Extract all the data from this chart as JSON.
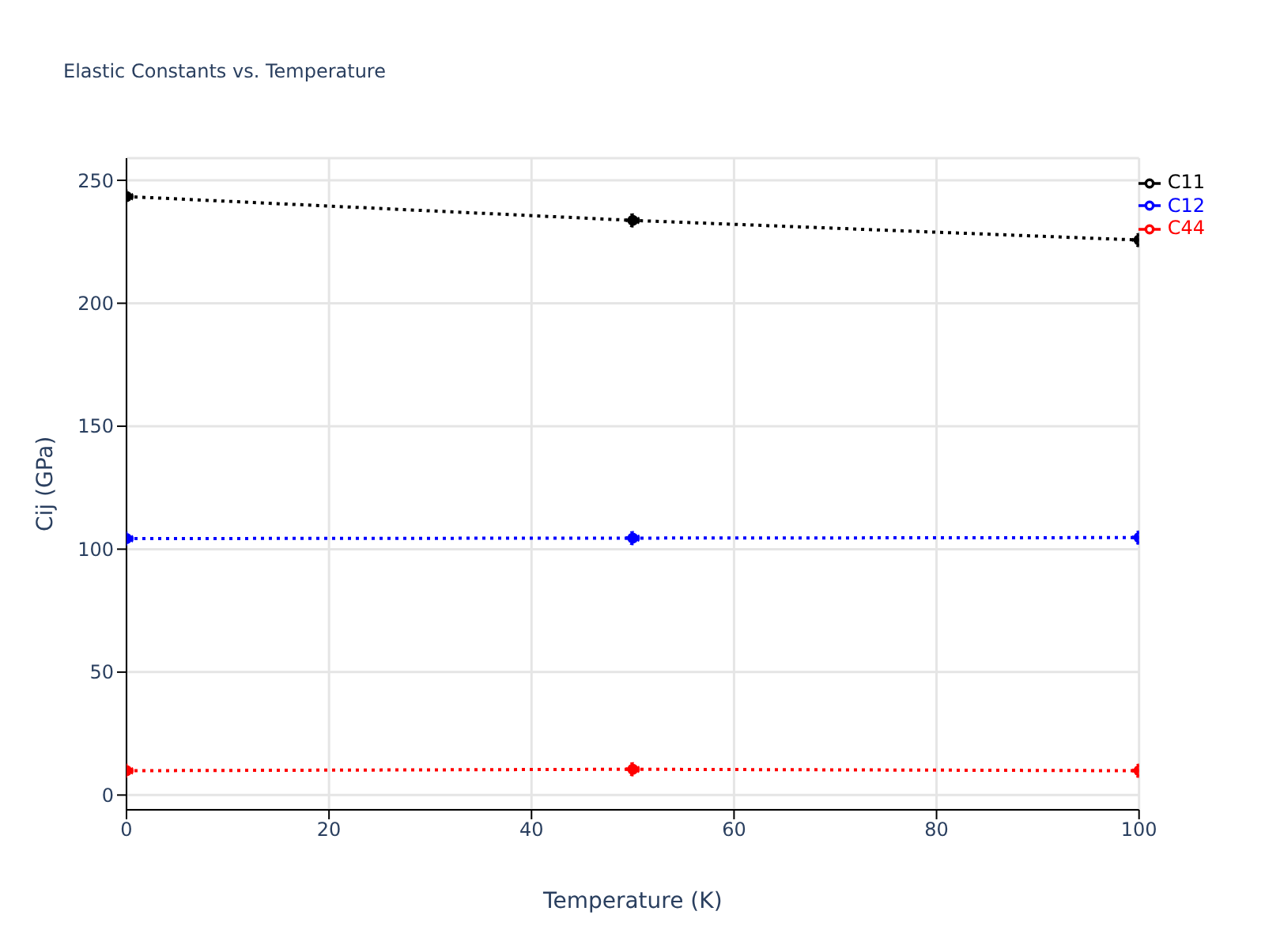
{
  "chart_data": {
    "type": "line",
    "title": "Elastic Constants vs. Temperature",
    "xlabel": "Temperature (K)",
    "ylabel": "Cij (GPa)",
    "x": [
      0,
      50,
      100
    ],
    "series": [
      {
        "name": "C11",
        "color": "#000000",
        "values": [
          243.4,
          233.7,
          225.7
        ]
      },
      {
        "name": "C12",
        "color": "#0000ff",
        "values": [
          104.3,
          104.5,
          104.7
        ]
      },
      {
        "name": "C44",
        "color": "#ff0000",
        "values": [
          9.9,
          10.5,
          9.9
        ]
      }
    ],
    "xlim": [
      0,
      100
    ],
    "xticks": [
      0,
      20,
      40,
      60,
      80,
      100
    ],
    "ylim": [
      -6,
      259
    ],
    "yticks": [
      0,
      50,
      100,
      150,
      200,
      250
    ],
    "grid": true,
    "legend": "top right",
    "marker": "circle",
    "line_style": "dotted"
  }
}
